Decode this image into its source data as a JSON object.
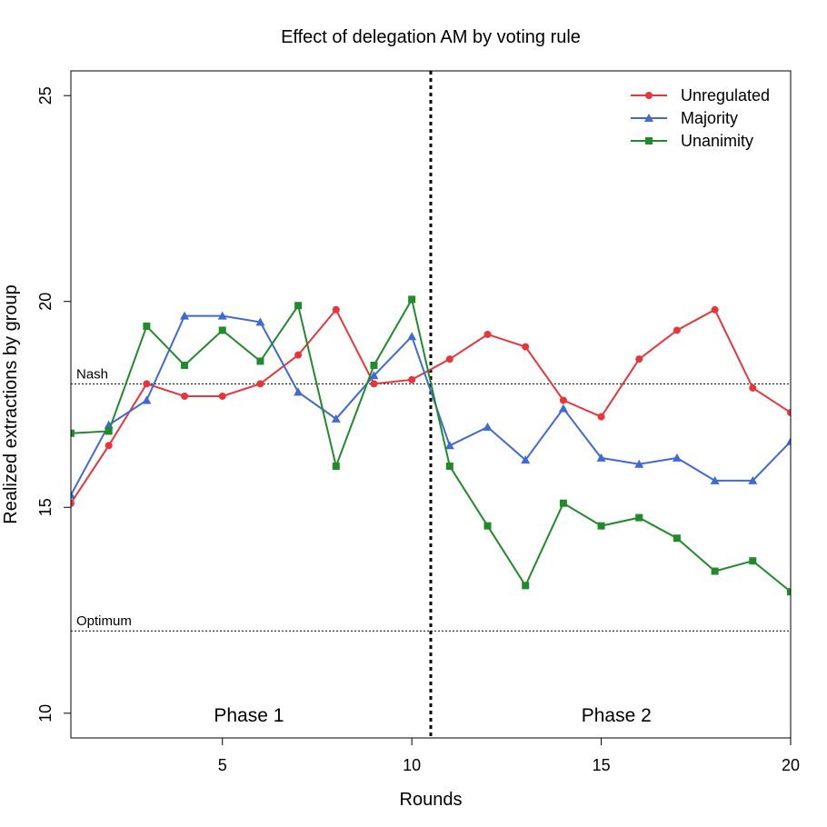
{
  "chart_data": {
    "type": "line",
    "title": "Effect of delegation AM by voting rule",
    "xlabel": "Rounds",
    "ylabel": "Realized extractions by group",
    "xlim": [
      1,
      20
    ],
    "ylim": [
      9.4,
      25.6
    ],
    "x_ticks": [
      "5",
      "10",
      "15",
      "20"
    ],
    "y_ticks": [
      "10",
      "15",
      "20",
      "25"
    ],
    "grid": false,
    "legend_position": "top-right",
    "x": [
      1,
      2,
      3,
      4,
      5,
      6,
      7,
      8,
      9,
      10,
      11,
      12,
      13,
      14,
      15,
      16,
      17,
      18,
      19,
      20
    ],
    "series": [
      {
        "name": "Unregulated",
        "color": "#e8353b",
        "marker": "circle",
        "values": [
          15.1,
          16.5,
          18.0,
          17.7,
          17.7,
          18.0,
          18.7,
          19.8,
          18.0,
          18.1,
          18.6,
          19.2,
          18.9,
          17.6,
          17.2,
          18.6,
          19.3,
          19.8,
          17.9,
          17.3
        ]
      },
      {
        "name": "Majority",
        "color": "#4169d4",
        "marker": "triangle",
        "values": [
          15.3,
          17.0,
          17.6,
          19.65,
          19.65,
          19.5,
          17.8,
          17.15,
          18.2,
          19.15,
          16.5,
          16.95,
          16.15,
          17.4,
          16.2,
          16.05,
          16.2,
          15.65,
          15.65,
          16.6
        ]
      },
      {
        "name": "Unanimity",
        "color": "#218a2a",
        "marker": "square",
        "values": [
          16.8,
          16.85,
          19.4,
          18.45,
          19.3,
          18.55,
          19.9,
          16.0,
          18.45,
          20.05,
          16.0,
          14.55,
          13.1,
          15.1,
          14.55,
          14.75,
          14.25,
          13.45,
          13.7,
          12.95
        ]
      }
    ],
    "phase_split_x": 10.5,
    "phase_labels": [
      {
        "text": "Phase 1",
        "x": 5.7,
        "y": 9.95
      },
      {
        "text": "Phase 2",
        "x": 15.4,
        "y": 9.95
      }
    ],
    "reference_lines": [
      {
        "label": "Nash",
        "y": 18.0
      },
      {
        "label": "Optimum",
        "y": 12.0
      }
    ]
  }
}
